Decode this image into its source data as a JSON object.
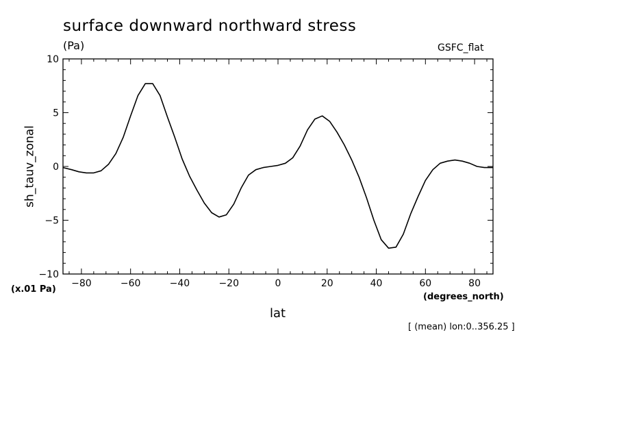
{
  "header": {
    "title": "surface downward northward stress",
    "units": "(Pa)",
    "dataset": "GSFC_flat"
  },
  "axes": {
    "xlabel": "lat",
    "xunits": "(degrees_north)",
    "ylabel": "sh_tauv_zonal",
    "yscale_note": "(x.01 Pa)"
  },
  "footer": {
    "context": "[ (mean) lon:0..356.25 ]"
  },
  "colors": {
    "line": "#000000",
    "background": "#ffffff"
  },
  "chart_data": {
    "type": "line",
    "title": "surface downward northward stress",
    "xlabel": "lat",
    "ylabel": "sh_tauv_zonal",
    "xlim": [
      -87.5,
      87.5
    ],
    "ylim": [
      -10,
      10
    ],
    "x_ticks": [
      -80,
      -60,
      -40,
      -20,
      0,
      20,
      40,
      60,
      80
    ],
    "x_tick_labels": [
      "−80",
      "−60",
      "−40",
      "−20",
      "0",
      "20",
      "40",
      "60",
      "80"
    ],
    "y_ticks": [
      -10,
      -5,
      0,
      5,
      10
    ],
    "y_tick_labels": [
      "−10",
      "−5",
      "0",
      "5",
      "10"
    ],
    "grid": false,
    "series": [
      {
        "x": [
          -87.5,
          -84,
          -81,
          -78,
          -75,
          -72,
          -69,
          -66,
          -63,
          -60,
          -57,
          -54,
          -51,
          -48,
          -45,
          -42,
          -39,
          -36,
          -33,
          -30,
          -27,
          -24,
          -21,
          -18,
          -15,
          -12,
          -9,
          -6,
          -3,
          0,
          3,
          6,
          9,
          12,
          15,
          18,
          21,
          24,
          27,
          30,
          33,
          36,
          39,
          42,
          45,
          48,
          51,
          54,
          57,
          60,
          63,
          66,
          69,
          72,
          75,
          78,
          81,
          84,
          87.5
        ],
        "values": [
          -0.1,
          -0.3,
          -0.5,
          -0.6,
          -0.6,
          -0.4,
          0.2,
          1.2,
          2.7,
          4.7,
          6.6,
          7.7,
          7.7,
          6.6,
          4.6,
          2.7,
          0.7,
          -0.9,
          -2.2,
          -3.4,
          -4.3,
          -4.7,
          -4.5,
          -3.5,
          -2.0,
          -0.8,
          -0.3,
          -0.1,
          0.0,
          0.1,
          0.3,
          0.8,
          1.9,
          3.4,
          4.4,
          4.7,
          4.2,
          3.2,
          2.0,
          0.6,
          -1.0,
          -2.9,
          -5.0,
          -6.8,
          -7.6,
          -7.5,
          -6.3,
          -4.4,
          -2.8,
          -1.3,
          -0.3,
          0.3,
          0.5,
          0.6,
          0.5,
          0.3,
          0.0,
          -0.1,
          -0.1
        ]
      }
    ]
  }
}
